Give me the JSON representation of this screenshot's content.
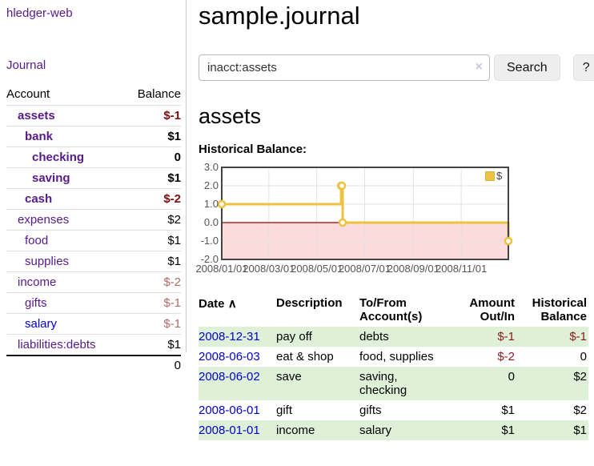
{
  "sidebar": {
    "app_title": "hledger-web",
    "nav_journal": "Journal",
    "table": {
      "account_header": "Account",
      "balance_header": "Balance",
      "rows": [
        {
          "account": "assets",
          "balance": "$-1",
          "indent": 1,
          "bold": true,
          "neg": "strong",
          "link": "purple"
        },
        {
          "account": "bank",
          "balance": "$1",
          "indent": 2,
          "bold": true,
          "neg": "",
          "link": "purple"
        },
        {
          "account": "checking",
          "balance": "0",
          "indent": 3,
          "bold": true,
          "neg": "",
          "link": "purple"
        },
        {
          "account": "saving",
          "balance": "$1",
          "indent": 3,
          "bold": true,
          "neg": "",
          "link": "purple"
        },
        {
          "account": "cash",
          "balance": "$-2",
          "indent": 2,
          "bold": true,
          "neg": "strong",
          "link": "purple"
        },
        {
          "account": "expenses",
          "balance": "$2",
          "indent": 1,
          "bold": false,
          "neg": "",
          "link": "purple"
        },
        {
          "account": "food",
          "balance": "$1",
          "indent": 2,
          "bold": false,
          "neg": "",
          "link": "purple"
        },
        {
          "account": "supplies",
          "balance": "$1",
          "indent": 2,
          "bold": false,
          "neg": "",
          "link": "purple"
        },
        {
          "account": "income",
          "balance": "$-2",
          "indent": 1,
          "bold": false,
          "neg": "soft",
          "link": "purple"
        },
        {
          "account": "gifts",
          "balance": "$-1",
          "indent": 2,
          "bold": false,
          "neg": "soft",
          "link": "purple"
        },
        {
          "account": "salary",
          "balance": "$-1",
          "indent": 2,
          "bold": false,
          "neg": "soft",
          "link": "blue"
        },
        {
          "account": "liabilities:debts",
          "balance": "$1",
          "indent": 1,
          "bold": false,
          "neg": "",
          "link": "purple"
        }
      ],
      "total": "0"
    }
  },
  "header": {
    "title": "sample.journal"
  },
  "search": {
    "query": "inacct:assets",
    "clear_icon": "×",
    "button_label": "Search",
    "help_label": "?"
  },
  "account_page": {
    "title": "assets",
    "chart_heading": "Historical Balance:"
  },
  "chart_data": {
    "type": "line",
    "step": true,
    "title": "Historical Balance",
    "series": [
      {
        "name": "$",
        "color": "#edc240",
        "points": [
          [
            "2008-01-01",
            1
          ],
          [
            "2008-06-01",
            2
          ],
          [
            "2008-06-02",
            2
          ],
          [
            "2008-06-03",
            0
          ],
          [
            "2008-12-31",
            -1
          ]
        ]
      }
    ],
    "x_range": [
      "2008-01-01",
      "2008-12-31"
    ],
    "x_ticks": [
      "2008/01/01",
      "2008/03/01",
      "2008/05/01",
      "2008/07/01",
      "2008/09/01",
      "2008/11/01"
    ],
    "y_ticks": [
      "3.0",
      "2.0",
      "1.0",
      "0.0",
      "-1.0",
      "-2.0"
    ],
    "ylim": [
      -2,
      3
    ],
    "grid": true,
    "legend_position": "top-right",
    "colors": {
      "line": "#edc240",
      "marker_fill": "#ffffff",
      "border": "#444444",
      "gridline": "#e2e2e2",
      "zero_line": "#a00000",
      "negative_region": "#fbdbdb",
      "tick_text": "#545454"
    }
  },
  "register": {
    "sort_icon": "∧",
    "headers": {
      "date": "Date",
      "description": "Description",
      "accounts": "To/From Account(s)",
      "amount": "Amount Out/In",
      "balance": "Historical Balance"
    },
    "rows": [
      {
        "date": "2008-12-31",
        "description": "pay off",
        "accounts": "debts",
        "amount": "$-1",
        "amount_neg": true,
        "balance": "$-1",
        "balance_neg": true
      },
      {
        "date": "2008-06-03",
        "description": "eat & shop",
        "accounts": "food, supplies",
        "amount": "$-2",
        "amount_neg": true,
        "balance": "0",
        "balance_neg": false
      },
      {
        "date": "2008-06-02",
        "description": "save",
        "accounts": "saving, checking",
        "amount": "0",
        "amount_neg": false,
        "balance": "$2",
        "balance_neg": false
      },
      {
        "date": "2008-06-01",
        "description": "gift",
        "accounts": "gifts",
        "amount": "$1",
        "amount_neg": false,
        "balance": "$2",
        "balance_neg": false
      },
      {
        "date": "2008-01-01",
        "description": "income",
        "accounts": "salary",
        "amount": "$1",
        "amount_neg": false,
        "balance": "$1",
        "balance_neg": false
      }
    ]
  }
}
